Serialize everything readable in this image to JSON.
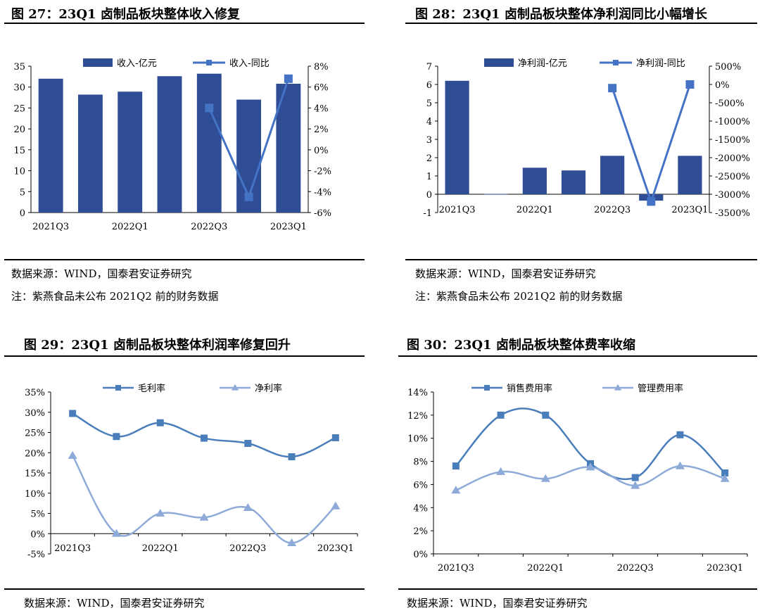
{
  "figures": [
    {
      "title": "图 27：23Q1 卤制品板块整体收入修复",
      "source": "数据来源：WIND，国泰君安证券研究",
      "note": "注：紫燕食品未公布 2021Q2 前的财务数据"
    },
    {
      "title": "图 28：23Q1 卤制品板块整体净利润同比小幅增长",
      "source": "数据来源：WIND，国泰君安证券研究",
      "note": "注：紫燕食品未公布 2021Q2 前的财务数据"
    },
    {
      "title": "图 29：23Q1 卤制品板块整体利润率修复回升",
      "source": "数据来源：WIND，国泰君安证券研究"
    },
    {
      "title": "图 30：23Q1 卤制品板块整体费率收缩",
      "source": "数据来源：WIND，国泰君安证券研究"
    }
  ],
  "chart_data": [
    {
      "type": "bar",
      "categories": [
        "2021Q3",
        "2021Q4",
        "2022Q1",
        "2022Q2",
        "2022Q3",
        "2022Q4",
        "2023Q1"
      ],
      "x_tick_labels": [
        "2021Q3",
        "2022Q1",
        "2022Q3",
        "2023Q1"
      ],
      "series": [
        {
          "name": "收入-亿元",
          "type": "bar",
          "axis": "left",
          "values": [
            32.0,
            28.2,
            28.9,
            32.6,
            33.2,
            27.0,
            30.8
          ]
        },
        {
          "name": "收入-同比",
          "type": "line",
          "axis": "right",
          "values": [
            null,
            null,
            null,
            null,
            4.0,
            -4.5,
            6.8
          ]
        }
      ],
      "ylim": [
        0,
        35
      ],
      "y_ticks": [
        "0",
        "5",
        "10",
        "15",
        "20",
        "25",
        "30",
        "35"
      ],
      "y2lim": [
        -6,
        8
      ],
      "y2_ticks": [
        "-6%",
        "-4%",
        "-2%",
        "0%",
        "2%",
        "4%",
        "6%",
        "8%"
      ],
      "legend": "top",
      "colors": {
        "bar": "#2e4d94",
        "line": "#4472c4"
      }
    },
    {
      "type": "bar",
      "categories": [
        "2021Q3",
        "2021Q4",
        "2022Q1",
        "2022Q2",
        "2022Q3",
        "2022Q4",
        "2023Q1"
      ],
      "x_tick_labels": [
        "2021Q3",
        "2022Q1",
        "2022Q3",
        "2023Q1"
      ],
      "series": [
        {
          "name": "净利润-亿元",
          "type": "bar",
          "axis": "left",
          "values": [
            6.2,
            0.02,
            1.45,
            1.3,
            2.1,
            -0.35,
            2.1
          ]
        },
        {
          "name": "净利润-同比",
          "type": "line",
          "axis": "right",
          "values": [
            null,
            null,
            null,
            null,
            -100,
            -3200,
            0
          ]
        }
      ],
      "ylim": [
        -1,
        7
      ],
      "y_ticks": [
        "-1",
        "0",
        "1",
        "2",
        "3",
        "4",
        "5",
        "6",
        "7"
      ],
      "y2lim": [
        -3500,
        500
      ],
      "y2_ticks": [
        "-3500%",
        "-3000%",
        "-2500%",
        "-2000%",
        "-1500%",
        "-1000%",
        "-500%",
        "0%",
        "500%"
      ],
      "legend": "top",
      "colors": {
        "bar": "#2e4d94",
        "line": "#4472c4"
      }
    },
    {
      "type": "line",
      "categories": [
        "2021Q3",
        "2021Q4",
        "2022Q1",
        "2022Q2",
        "2022Q3",
        "2022Q4",
        "2023Q1"
      ],
      "x_tick_labels": [
        "2021Q3",
        "2022Q1",
        "2022Q3",
        "2023Q1"
      ],
      "series": [
        {
          "name": "毛利率",
          "values": [
            29.7,
            24.0,
            27.4,
            23.6,
            22.3,
            19.0,
            23.7
          ]
        },
        {
          "name": "净利率",
          "values": [
            19.3,
            0.0,
            5.0,
            4.0,
            6.4,
            -2.3,
            6.8
          ]
        }
      ],
      "ylim": [
        -5,
        35
      ],
      "y_ticks": [
        "-5%",
        "0%",
        "5%",
        "10%",
        "15%",
        "20%",
        "25%",
        "30%",
        "35%"
      ],
      "legend": "top",
      "colors": {
        "毛利率": "#4a7ebb",
        "净利率": "#8eaad8"
      }
    },
    {
      "type": "line",
      "categories": [
        "2021Q3",
        "2021Q4",
        "2022Q1",
        "2022Q2",
        "2022Q3",
        "2022Q4",
        "2023Q1"
      ],
      "x_tick_labels": [
        "2021Q3",
        "2022Q1",
        "2022Q3",
        "2023Q1"
      ],
      "series": [
        {
          "name": "销售费用率",
          "values": [
            7.6,
            12.0,
            12.0,
            7.8,
            6.6,
            10.3,
            7.0
          ]
        },
        {
          "name": "管理费用率",
          "values": [
            5.5,
            7.1,
            6.5,
            7.5,
            5.9,
            7.6,
            6.5
          ]
        }
      ],
      "ylim": [
        0,
        14
      ],
      "y_ticks": [
        "0%",
        "2%",
        "4%",
        "6%",
        "8%",
        "10%",
        "12%",
        "14%"
      ],
      "legend": "top",
      "colors": {
        "销售费用率": "#4a7ebb",
        "管理费用率": "#8eaad8"
      }
    }
  ]
}
